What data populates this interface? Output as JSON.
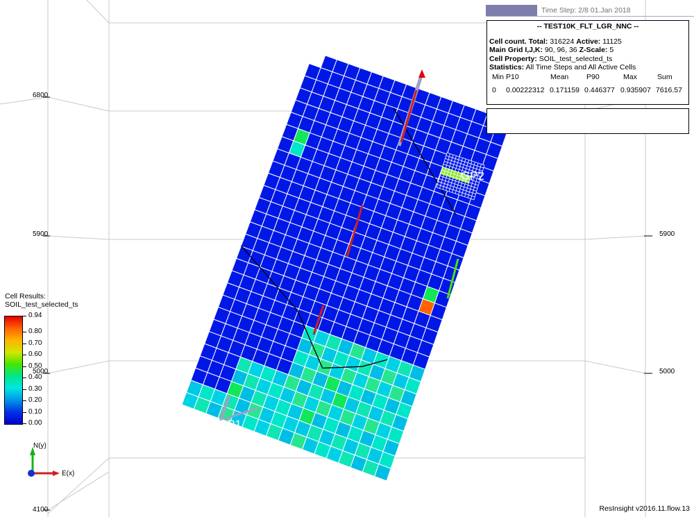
{
  "time_step": {
    "label": "Time Step: 2/8 01.Jan 2018"
  },
  "info": {
    "title": "-- TEST10K_FLT_LGR_NNC --",
    "cell_count_label": "Cell count. Total:",
    "cell_count_total": "316224",
    "active_label": "Active:",
    "active_value": "11125",
    "main_grid_label": "Main Grid I,J,K:",
    "main_grid_value": "90, 96, 36",
    "zscale_label": "Z-Scale:",
    "zscale_value": "5",
    "cell_property_label": "Cell Property:",
    "cell_property_value": "SOIL_test_selected_ts",
    "statistics_label": "Statistics:",
    "statistics_value": "All Time Steps and All Active Cells",
    "stat_headers": [
      "Min",
      "P10",
      "Mean",
      "P90",
      "Max",
      "Sum"
    ],
    "stat_values": [
      "0",
      "0.00222312",
      "0.171159",
      "0.446377",
      "0.935907",
      "7616.57"
    ]
  },
  "legend": {
    "title": "Cell Results:",
    "property": "SOIL_test_selected_ts",
    "labels": [
      "0.94",
      "0.80",
      "0.70",
      "0.60",
      "0.50",
      "0.40",
      "0.30",
      "0.20",
      "0.10",
      "0.00"
    ]
  },
  "axes": {
    "left_ticks": [
      "6800",
      "5900",
      "5000",
      "4100"
    ],
    "right_ticks": [
      "5900",
      "5000"
    ]
  },
  "wells": {
    "w1": "GI1",
    "w2": "GP2",
    "w3": "GP1"
  },
  "nav_axes": {
    "y": "N(y)",
    "x": "E(x)"
  },
  "version": "ResInsight v2016.11.flow.13",
  "colors": {
    "grid_blue": "#0018e6",
    "cell_light": "#00e6c8",
    "cell_green": "#12e65a",
    "legend_scale": [
      "#e60000",
      "#ff6400",
      "#ffb400",
      "#d2e600",
      "#46e600",
      "#00e68c",
      "#00e6e6",
      "#0096e6",
      "#0032e6",
      "#0000d2"
    ]
  }
}
